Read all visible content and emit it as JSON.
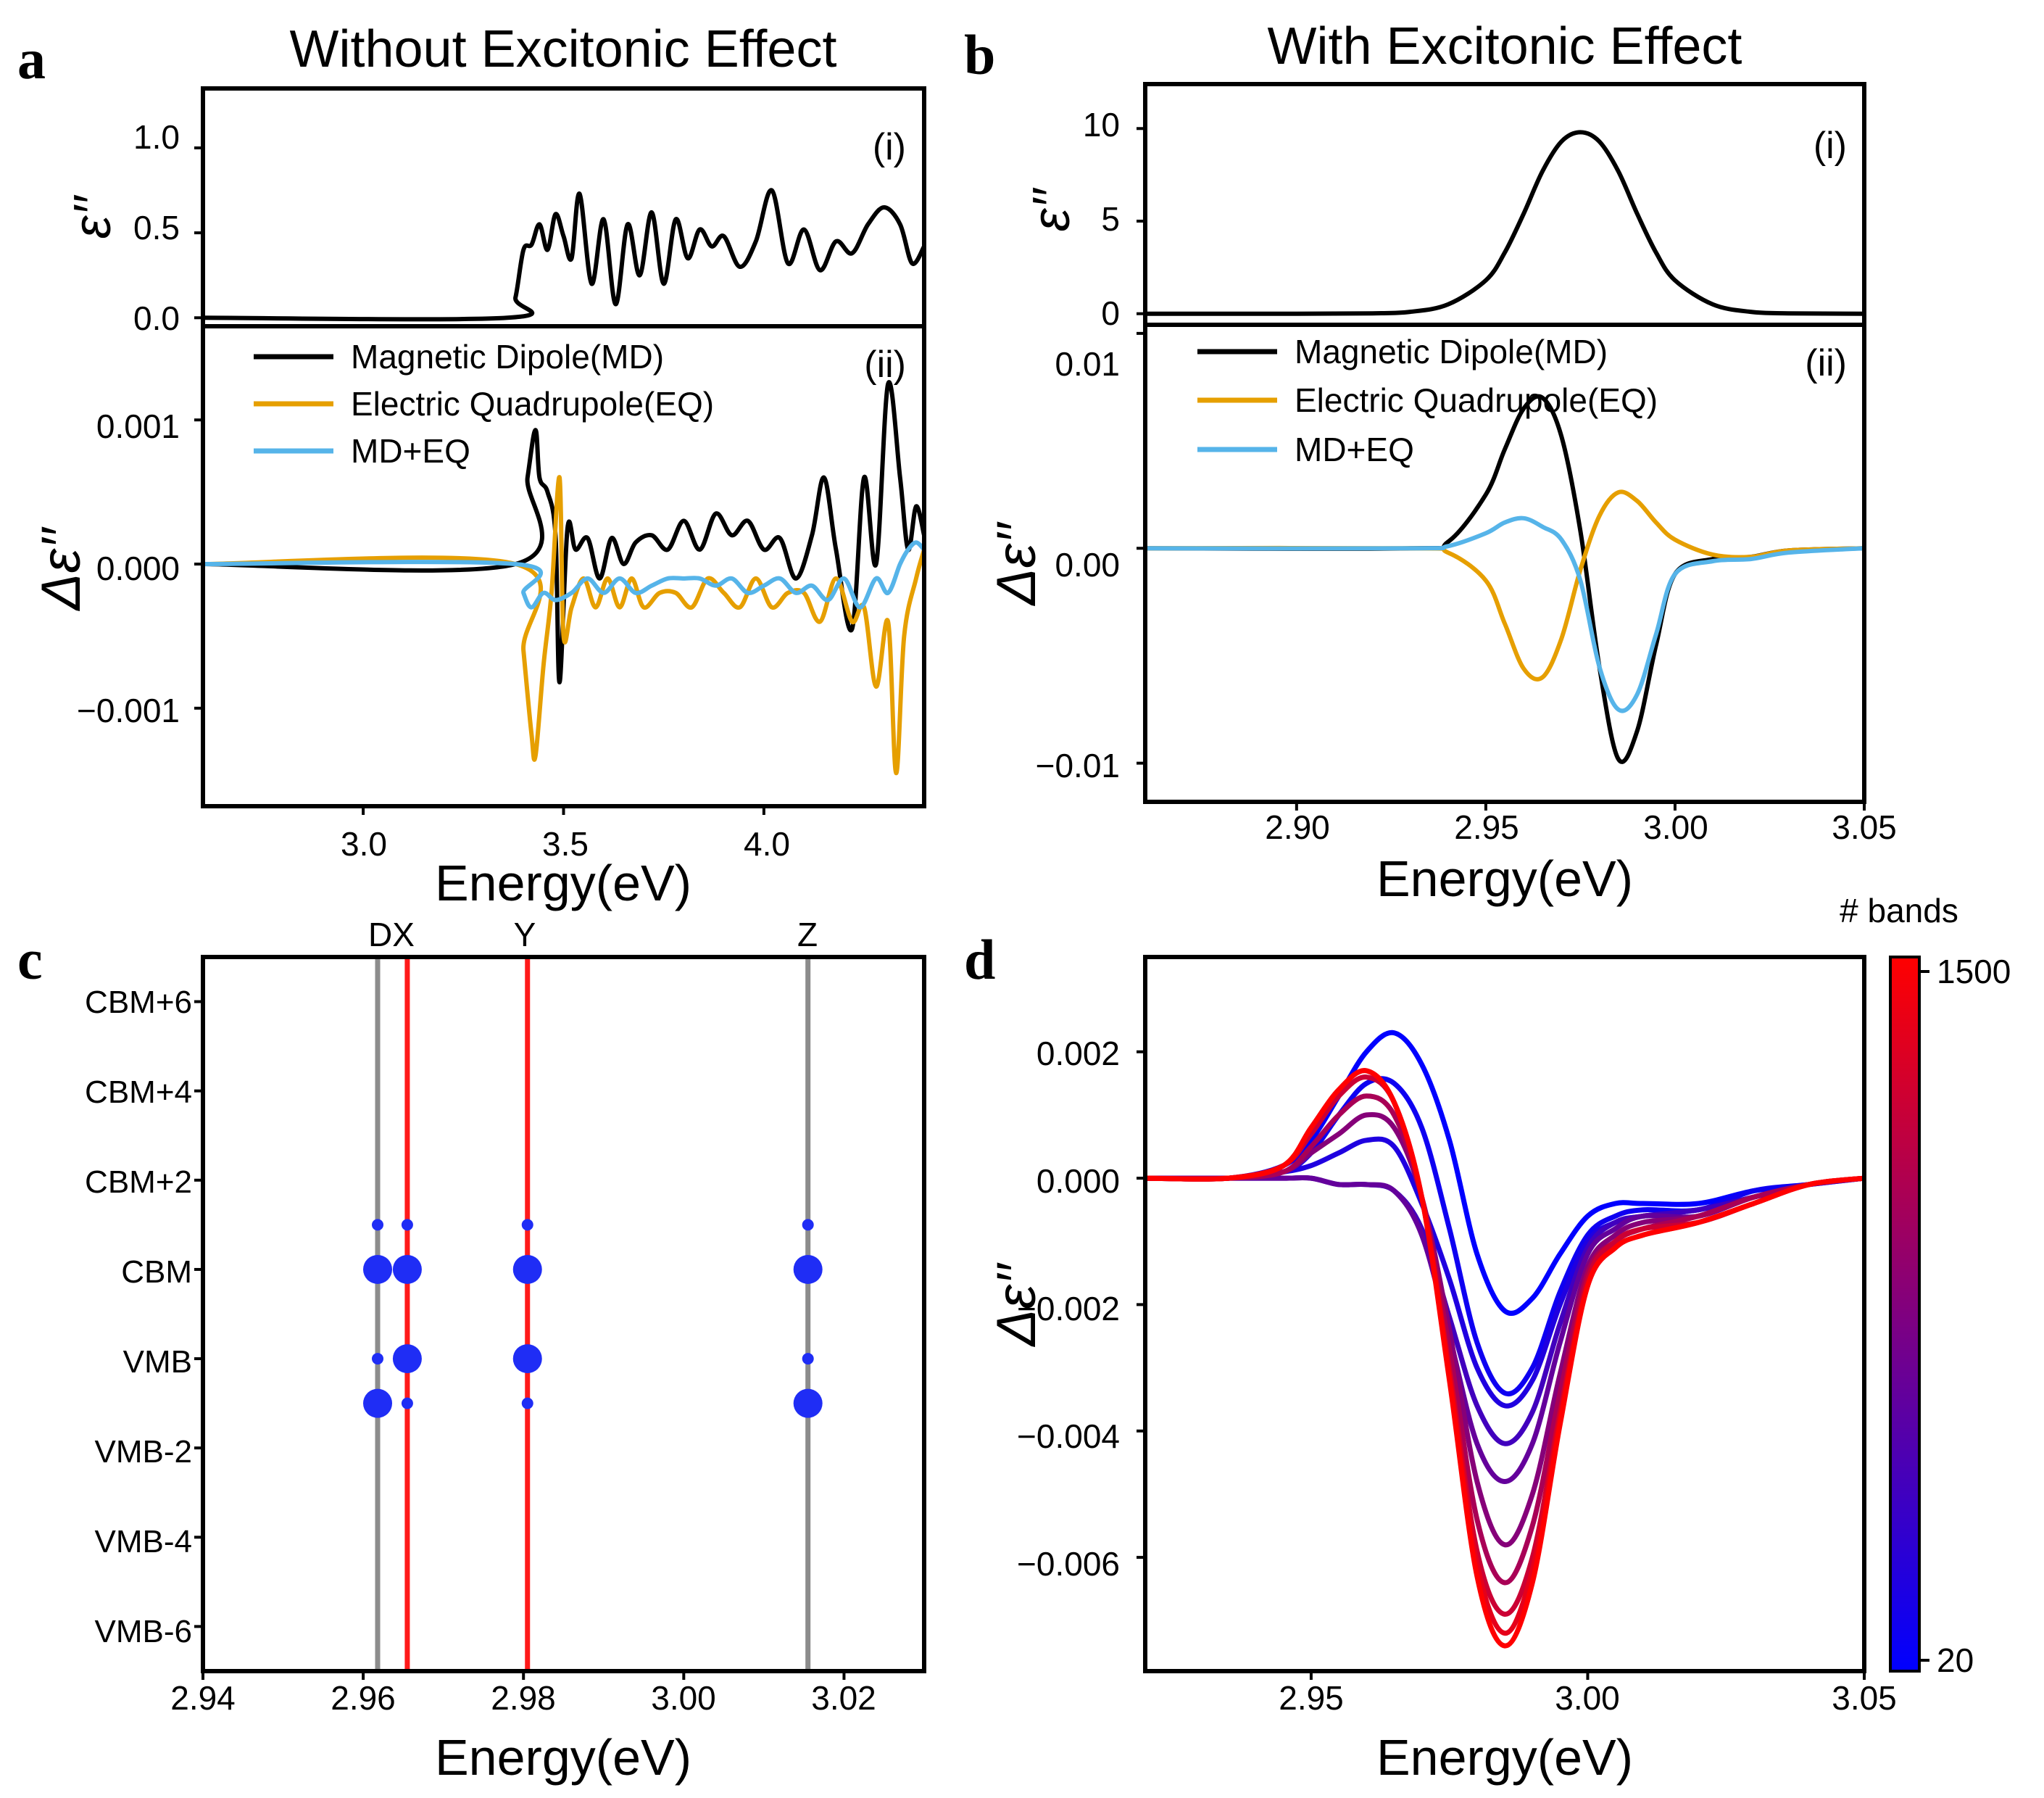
{
  "colors": {
    "md": "#000000",
    "eq": "#E69F00",
    "sum": "#56B4E9",
    "red_line": "#FF1A1A",
    "gray_line": "#8C8C8C",
    "dot": "#1F2DF5",
    "cbar_low": "#0000FF",
    "cbar_high": "#FF0000"
  },
  "panels": {
    "a": {
      "letter": "a",
      "title": "Without Excitonic Effect",
      "xlabel": "Energy(eV)",
      "xticks": [
        "3.0",
        "3.5",
        "4.0"
      ],
      "top": {
        "tag": "(i)",
        "yticks": [
          "0.0",
          "0.5",
          "1.0"
        ]
      },
      "bottom": {
        "tag": "(ii)",
        "yticks": [
          "0.001",
          "0.000",
          "−0.001"
        ],
        "legend": [
          "Magnetic Dipole(MD)",
          "Electric Quadrupole(EQ)",
          "MD+EQ"
        ]
      }
    },
    "b": {
      "letter": "b",
      "title": "With Excitonic Effect",
      "xlabel": "Energy(eV)",
      "xticks": [
        "2.90",
        "2.95",
        "3.00",
        "3.05"
      ],
      "top": {
        "tag": "(i)",
        "yticks": [
          "0",
          "5",
          "10"
        ]
      },
      "bottom": {
        "tag": "(ii)",
        "yticks": [
          "0.01",
          "0.00",
          "−0.01"
        ],
        "legend": [
          "Magnetic Dipole(MD)",
          "Electric Quadrupole(EQ)",
          "MD+EQ"
        ]
      }
    },
    "c": {
      "letter": "c",
      "xlabel": "Energy(eV)",
      "xticks": [
        "2.94",
        "2.96",
        "2.98",
        "3.00",
        "3.02"
      ],
      "yticks": [
        "CBM+6",
        "CBM+4",
        "CBM+2",
        "CBM",
        "VMB",
        "VMB-2",
        "VMB-4",
        "VMB-6"
      ],
      "top_labels": [
        "DX",
        "Y",
        "Z"
      ]
    },
    "d": {
      "letter": "d",
      "xlabel": "Energy(eV)",
      "xticks": [
        "2.95",
        "3.00",
        "3.05"
      ],
      "yticks": [
        "0.002",
        "0.000",
        "−0.002",
        "−0.004",
        "−0.006"
      ],
      "colorbar": {
        "title": "# bands",
        "max_label": "1500",
        "min_label": "20"
      }
    }
  },
  "chart_data": [
    {
      "panel": "a(i)",
      "type": "line",
      "ylabel": "ε′′",
      "xlim": [
        2.6,
        4.4
      ],
      "ylim": [
        -0.05,
        1.35
      ],
      "series": [
        {
          "x": [
            2.6,
            3.36,
            3.38,
            3.4,
            3.42,
            3.44,
            3.46,
            3.48,
            3.5,
            3.52,
            3.54,
            3.57,
            3.6,
            3.63,
            3.66,
            3.69,
            3.72,
            3.75,
            3.78,
            3.81,
            3.84,
            3.87,
            3.9,
            3.94,
            3.98,
            4.02,
            4.06,
            4.1,
            4.14,
            4.18,
            4.22,
            4.26,
            4.3,
            4.34,
            4.37,
            4.4
          ],
          "y": [
            0.0,
            0.0,
            0.12,
            0.4,
            0.43,
            0.55,
            0.4,
            0.61,
            0.48,
            0.35,
            0.73,
            0.2,
            0.58,
            0.08,
            0.55,
            0.25,
            0.62,
            0.2,
            0.58,
            0.35,
            0.52,
            0.42,
            0.48,
            0.3,
            0.45,
            0.75,
            0.32,
            0.52,
            0.28,
            0.45,
            0.38,
            0.55,
            0.65,
            0.55,
            0.32,
            0.42
          ]
        }
      ]
    },
    {
      "panel": "a(ii)",
      "type": "line",
      "ylabel": "Δε′′",
      "xlim": [
        2.6,
        4.4
      ],
      "ylim": [
        -0.00168,
        0.00165
      ],
      "series": [
        {
          "name": "Magnetic Dipole(MD)",
          "x": [
            2.6,
            3.38,
            3.41,
            3.43,
            3.44,
            3.46,
            3.48,
            3.49,
            3.51,
            3.53,
            3.56,
            3.59,
            3.62,
            3.65,
            3.68,
            3.72,
            3.76,
            3.8,
            3.84,
            3.88,
            3.92,
            3.96,
            4.0,
            4.04,
            4.08,
            4.12,
            4.15,
            4.18,
            4.22,
            4.25,
            4.28,
            4.31,
            4.34,
            4.36,
            4.38,
            4.4
          ],
          "y": [
            0.0,
            0.0,
            0.0006,
            0.00093,
            0.0006,
            0.0005,
            0.0002,
            -0.00082,
            0.00025,
            0.0001,
            0.00018,
            -0.0001,
            0.00018,
            0.0,
            0.00015,
            0.0002,
            0.0001,
            0.0003,
            0.0001,
            0.00035,
            0.0002,
            0.0003,
            0.0001,
            0.00018,
            -0.0001,
            0.0002,
            0.0006,
            0.0001,
            -0.00045,
            0.0006,
            0.0,
            0.00125,
            0.0006,
            0.0001,
            0.0004,
            0.0002
          ]
        },
        {
          "name": "Electric Quadrupole(EQ)",
          "x": [
            2.6,
            3.38,
            3.4,
            3.42,
            3.43,
            3.45,
            3.47,
            3.49,
            3.5,
            3.52,
            3.55,
            3.58,
            3.61,
            3.64,
            3.67,
            3.7,
            3.74,
            3.78,
            3.82,
            3.86,
            3.9,
            3.94,
            3.98,
            4.02,
            4.06,
            4.1,
            4.14,
            4.18,
            4.22,
            4.25,
            4.28,
            4.31,
            4.33,
            4.35,
            4.38,
            4.4
          ],
          "y": [
            0.0,
            0.0,
            -0.0006,
            -0.00118,
            -0.00133,
            -0.0007,
            -0.0002,
            0.0006,
            -0.0005,
            -0.0003,
            -0.0001,
            -0.0003,
            -0.0001,
            -0.0003,
            -0.0001,
            -0.0003,
            -0.0002,
            -0.0002,
            -0.0003,
            -0.0001,
            -0.0002,
            -0.0003,
            -0.0001,
            -0.0003,
            -0.0002,
            -0.0002,
            -0.0004,
            -0.0001,
            -0.0004,
            -0.0003,
            -0.00085,
            -0.0004,
            -0.00145,
            -0.0005,
            -0.0001,
            0.0001
          ]
        },
        {
          "name": "MD+EQ",
          "x": [
            2.6,
            3.38,
            3.4,
            3.42,
            3.45,
            3.48,
            3.52,
            3.56,
            3.6,
            3.64,
            3.68,
            3.72,
            3.76,
            3.8,
            3.84,
            3.88,
            3.92,
            3.96,
            4.0,
            4.04,
            4.08,
            4.12,
            4.16,
            4.2,
            4.24,
            4.28,
            4.31,
            4.34,
            4.36,
            4.38,
            4.4
          ],
          "y": [
            0.0,
            0.0,
            -0.0002,
            -0.0003,
            -0.0002,
            -0.00025,
            -0.0002,
            -0.0001,
            -0.0002,
            -0.0001,
            -0.0002,
            -0.00015,
            -0.0001,
            -0.0001,
            -0.0001,
            -0.00015,
            -0.0001,
            -0.0002,
            -0.00015,
            -0.0001,
            -0.0002,
            -0.00015,
            -0.00025,
            -0.0001,
            -0.0003,
            -0.0001,
            -0.0002,
            0.0,
            0.0001,
            0.00015,
            0.0001
          ]
        }
      ]
    },
    {
      "panel": "b(i)",
      "type": "line",
      "ylabel": "ε′′",
      "xlim": [
        2.86,
        3.05
      ],
      "ylim": [
        -0.6,
        12.4
      ],
      "series": [
        {
          "x": [
            2.86,
            2.9,
            2.92,
            2.93,
            2.94,
            2.95,
            2.955,
            2.96,
            2.965,
            2.97,
            2.975,
            2.98,
            2.985,
            2.99,
            2.995,
            3.0,
            3.01,
            3.02,
            3.03,
            3.05
          ],
          "y": [
            0.0,
            0.0,
            0.02,
            0.1,
            0.5,
            1.8,
            3.3,
            5.4,
            7.7,
            9.3,
            9.8,
            9.3,
            7.7,
            5.4,
            3.3,
            1.8,
            0.5,
            0.1,
            0.02,
            0.0
          ]
        }
      ]
    },
    {
      "panel": "b(ii)",
      "type": "line",
      "ylabel": "Δε′′",
      "xlim": [
        2.86,
        3.05
      ],
      "ylim": [
        -0.0118,
        0.0104
      ],
      "series": [
        {
          "name": "Magnetic Dipole(MD)",
          "x": [
            2.86,
            2.93,
            2.94,
            2.95,
            2.955,
            2.96,
            2.965,
            2.97,
            2.975,
            2.98,
            2.985,
            2.99,
            2.995,
            3.0,
            3.01,
            3.02,
            3.03,
            3.05
          ],
          "y": [
            0.0,
            0.0,
            0.0003,
            0.0025,
            0.0046,
            0.0065,
            0.007,
            0.0052,
            0.0008,
            -0.0055,
            -0.0098,
            -0.0085,
            -0.0045,
            -0.0012,
            -0.0005,
            -0.0004,
            -0.0001,
            0.0
          ]
        },
        {
          "name": "Electric Quadrupole(EQ)",
          "x": [
            2.86,
            2.93,
            2.94,
            2.95,
            2.955,
            2.96,
            2.965,
            2.97,
            2.975,
            2.98,
            2.985,
            2.99,
            2.995,
            3.0,
            3.01,
            3.02,
            3.03,
            3.05
          ],
          "y": [
            0.0,
            0.0,
            -0.0002,
            -0.0015,
            -0.0035,
            -0.0056,
            -0.006,
            -0.0042,
            -0.001,
            0.0015,
            0.0026,
            0.0022,
            0.0012,
            0.0004,
            -0.0003,
            -0.0004,
            -0.0001,
            0.0
          ]
        },
        {
          "name": "MD+EQ",
          "x": [
            2.86,
            2.93,
            2.94,
            2.95,
            2.955,
            2.96,
            2.965,
            2.97,
            2.975,
            2.98,
            2.985,
            2.99,
            2.995,
            3.0,
            3.01,
            3.02,
            3.03,
            3.05
          ],
          "y": [
            0.0,
            0.0,
            0.0001,
            0.0007,
            0.0012,
            0.0014,
            0.001,
            0.0004,
            -0.0015,
            -0.0055,
            -0.0075,
            -0.0068,
            -0.004,
            -0.0012,
            -0.0006,
            -0.0005,
            -0.0002,
            0.0
          ]
        }
      ]
    },
    {
      "panel": "c",
      "type": "scatter",
      "xlim": [
        2.94,
        3.03
      ],
      "ylim": [
        -0.5,
        7.5
      ],
      "y_categories": [
        "VMB-6",
        "VMB-4",
        "VMB-2",
        "VMB",
        "CBM",
        "CBM+2",
        "CBM+4",
        "CBM+6"
      ],
      "red_lines_x": [
        2.9655,
        2.9805
      ],
      "gray_lines_x": [
        2.9618,
        3.0155
      ],
      "points": [
        {
          "x": 2.9618,
          "y": 4.0,
          "size": "large"
        },
        {
          "x": 2.9618,
          "y": 4.5,
          "size": "small"
        },
        {
          "x": 2.9618,
          "y": 3.0,
          "size": "small"
        },
        {
          "x": 2.9618,
          "y": 2.5,
          "size": "large"
        },
        {
          "x": 2.9655,
          "y": 4.0,
          "size": "large"
        },
        {
          "x": 2.9655,
          "y": 4.5,
          "size": "small"
        },
        {
          "x": 2.9655,
          "y": 3.0,
          "size": "large"
        },
        {
          "x": 2.9655,
          "y": 2.5,
          "size": "small"
        },
        {
          "x": 2.9805,
          "y": 4.0,
          "size": "large"
        },
        {
          "x": 2.9805,
          "y": 4.5,
          "size": "small"
        },
        {
          "x": 2.9805,
          "y": 3.0,
          "size": "large"
        },
        {
          "x": 2.9805,
          "y": 2.5,
          "size": "small"
        },
        {
          "x": 3.0155,
          "y": 4.0,
          "size": "large"
        },
        {
          "x": 3.0155,
          "y": 4.5,
          "size": "small"
        },
        {
          "x": 3.0155,
          "y": 3.0,
          "size": "small"
        },
        {
          "x": 3.0155,
          "y": 2.5,
          "size": "large"
        }
      ]
    },
    {
      "panel": "d",
      "type": "line",
      "ylabel": "Δε′′",
      "xlim": [
        2.92,
        3.05
      ],
      "ylim": [
        -0.0078,
        0.0035
      ],
      "colorbar_range": [
        20,
        1500
      ],
      "x": [
        2.92,
        2.935,
        2.945,
        2.95,
        2.955,
        2.96,
        2.965,
        2.97,
        2.975,
        2.98,
        2.985,
        2.99,
        2.995,
        3.0,
        3.005,
        3.01,
        3.02,
        3.03,
        3.04,
        3.05
      ],
      "series": [
        {
          "bands": 20,
          "y": [
            0.0,
            0.0,
            0.0002,
            0.0006,
            0.0013,
            0.002,
            0.0023,
            0.0018,
            0.0006,
            -0.0012,
            -0.0021,
            -0.0019,
            -0.0012,
            -0.0006,
            -0.0004,
            -0.0004,
            -0.0004,
            -0.0002,
            -0.0001,
            0.0
          ]
        },
        {
          "bands": 100,
          "y": [
            0.0,
            0.0,
            0.0001,
            0.0004,
            0.001,
            0.0015,
            0.0015,
            0.0008,
            -0.0008,
            -0.0026,
            -0.0034,
            -0.003,
            -0.0018,
            -0.0009,
            -0.0006,
            -0.0005,
            -0.0005,
            -0.0002,
            -0.0001,
            0.0
          ]
        },
        {
          "bands": 200,
          "y": [
            0.0,
            0.0,
            0.0001,
            0.0002,
            0.0004,
            0.0006,
            0.0005,
            -0.0004,
            -0.0016,
            -0.003,
            -0.0036,
            -0.0032,
            -0.002,
            -0.001,
            -0.0007,
            -0.0006,
            -0.0005,
            -0.0003,
            -0.0001,
            0.0
          ]
        },
        {
          "bands": 400,
          "y": [
            0.0,
            0.0,
            0.0,
            0.0,
            -0.0001,
            -0.0001,
            -0.0002,
            -0.0008,
            -0.0022,
            -0.0036,
            -0.0042,
            -0.0037,
            -0.0023,
            -0.0011,
            -0.0007,
            -0.0006,
            -0.0005,
            -0.0003,
            -0.0001,
            0.0
          ]
        },
        {
          "bands": 600,
          "y": [
            0.0,
            0.0,
            0.0,
            0.0,
            -0.0001,
            -0.0001,
            -0.0002,
            -0.0009,
            -0.0025,
            -0.0042,
            -0.0048,
            -0.0042,
            -0.0026,
            -0.0012,
            -0.0008,
            -0.0006,
            -0.0006,
            -0.0003,
            -0.0001,
            0.0
          ]
        },
        {
          "bands": 800,
          "y": [
            0.0,
            0.0,
            0.0001,
            0.0004,
            0.0007,
            0.001,
            0.0008,
            -0.0003,
            -0.0024,
            -0.0048,
            -0.0058,
            -0.005,
            -0.0031,
            -0.0014,
            -0.0009,
            -0.0007,
            -0.0006,
            -0.0003,
            -0.0001,
            0.0
          ]
        },
        {
          "bands": 1000,
          "y": [
            0.0,
            0.0,
            0.0001,
            0.0005,
            0.001,
            0.0013,
            0.001,
            -0.0003,
            -0.0027,
            -0.0054,
            -0.0064,
            -0.0055,
            -0.0034,
            -0.0015,
            -0.001,
            -0.0008,
            -0.0006,
            -0.0003,
            -0.0001,
            0.0
          ]
        },
        {
          "bands": 1200,
          "y": [
            0.0,
            0.0,
            0.0002,
            0.0007,
            0.0013,
            0.0016,
            0.0012,
            -0.0003,
            -0.003,
            -0.0059,
            -0.0069,
            -0.006,
            -0.0037,
            -0.0016,
            -0.001,
            -0.0008,
            -0.0007,
            -0.0004,
            -0.0001,
            0.0
          ]
        },
        {
          "bands": 1350,
          "y": [
            0.0,
            0.0,
            0.0002,
            0.0008,
            0.0014,
            0.0017,
            0.0012,
            -0.0003,
            -0.0031,
            -0.0061,
            -0.0072,
            -0.0062,
            -0.0038,
            -0.0017,
            -0.0011,
            -0.0009,
            -0.0007,
            -0.0004,
            -0.0001,
            0.0
          ]
        },
        {
          "bands": 1500,
          "y": [
            0.0,
            0.0,
            0.0002,
            0.0008,
            0.0014,
            0.0017,
            0.0012,
            -0.0003,
            -0.0032,
            -0.0063,
            -0.0074,
            -0.0064,
            -0.0039,
            -0.0017,
            -0.0011,
            -0.0009,
            -0.0007,
            -0.0004,
            -0.0001,
            0.0
          ]
        }
      ]
    }
  ]
}
